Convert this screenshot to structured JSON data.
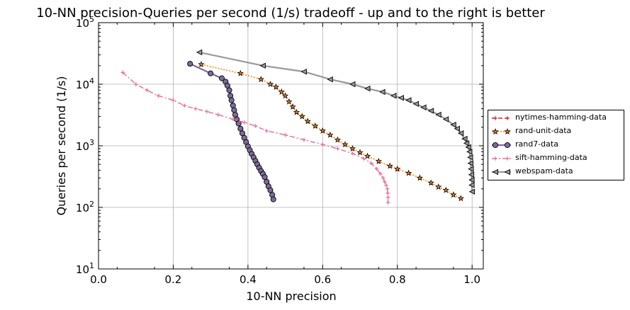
{
  "chart_data": {
    "type": "line",
    "title": "10-NN precision-Queries per second (1/s) tradeoff - up and to the right is better",
    "xlabel": "10-NN precision",
    "ylabel": "Queries per second (1/s)",
    "xlim": [
      0.0,
      1.03
    ],
    "ylim": [
      10,
      100000
    ],
    "yscale": "log",
    "grid": true,
    "legend_position": "right",
    "x_ticks": [
      "0.0",
      "0.2",
      "0.4",
      "0.6",
      "0.8",
      "1.0"
    ],
    "y_ticks": [
      {
        "base": "10",
        "exp": "1"
      },
      {
        "base": "10",
        "exp": "2"
      },
      {
        "base": "10",
        "exp": "3"
      },
      {
        "base": "10",
        "exp": "4"
      },
      {
        "base": "10",
        "exp": "5"
      }
    ],
    "series": [
      {
        "name": "nytimes-hamming-data",
        "color": "#d62728",
        "marker": "plus",
        "linestyle": "dashed",
        "points": []
      },
      {
        "name": "rand-unit-data",
        "color": "#ff7f0e",
        "marker": "star",
        "linestyle": "dotted",
        "points": [
          [
            0.275,
            21000
          ],
          [
            0.38,
            15000
          ],
          [
            0.435,
            12000
          ],
          [
            0.46,
            10000
          ],
          [
            0.475,
            9000
          ],
          [
            0.49,
            7500
          ],
          [
            0.5,
            6500
          ],
          [
            0.51,
            5200
          ],
          [
            0.52,
            4300
          ],
          [
            0.53,
            3500
          ],
          [
            0.545,
            3000
          ],
          [
            0.56,
            2500
          ],
          [
            0.58,
            2100
          ],
          [
            0.6,
            1750
          ],
          [
            0.62,
            1500
          ],
          [
            0.64,
            1250
          ],
          [
            0.66,
            1050
          ],
          [
            0.68,
            900
          ],
          [
            0.7,
            780
          ],
          [
            0.72,
            680
          ],
          [
            0.75,
            560
          ],
          [
            0.78,
            470
          ],
          [
            0.8,
            420
          ],
          [
            0.83,
            360
          ],
          [
            0.86,
            300
          ],
          [
            0.89,
            250
          ],
          [
            0.91,
            215
          ],
          [
            0.93,
            190
          ],
          [
            0.95,
            160
          ],
          [
            0.97,
            140
          ]
        ]
      },
      {
        "name": "rand7-data",
        "color": "#7b6b9a",
        "marker": "circle",
        "linestyle": "solid",
        "points": [
          [
            0.245,
            21500
          ],
          [
            0.3,
            15000
          ],
          [
            0.33,
            12500
          ],
          [
            0.34,
            11000
          ],
          [
            0.345,
            9500
          ],
          [
            0.35,
            8000
          ],
          [
            0.353,
            6500
          ],
          [
            0.356,
            5500
          ],
          [
            0.36,
            4500
          ],
          [
            0.363,
            3800
          ],
          [
            0.366,
            3200
          ],
          [
            0.37,
            2700
          ],
          [
            0.375,
            2300
          ],
          [
            0.38,
            1900
          ],
          [
            0.385,
            1600
          ],
          [
            0.39,
            1350
          ],
          [
            0.395,
            1150
          ],
          [
            0.4,
            980
          ],
          [
            0.405,
            850
          ],
          [
            0.41,
            740
          ],
          [
            0.415,
            650
          ],
          [
            0.42,
            570
          ],
          [
            0.425,
            500
          ],
          [
            0.43,
            440
          ],
          [
            0.435,
            390
          ],
          [
            0.44,
            350
          ],
          [
            0.445,
            310
          ],
          [
            0.45,
            260
          ],
          [
            0.455,
            220
          ],
          [
            0.46,
            190
          ],
          [
            0.465,
            160
          ],
          [
            0.468,
            135
          ]
        ]
      },
      {
        "name": "sift-hamming-data",
        "color": "#e8739c",
        "marker": "plus",
        "linestyle": "dashdot",
        "points": [
          [
            0.065,
            15500
          ],
          [
            0.1,
            10000
          ],
          [
            0.13,
            8000
          ],
          [
            0.16,
            6500
          ],
          [
            0.2,
            5500
          ],
          [
            0.23,
            4500
          ],
          [
            0.26,
            4000
          ],
          [
            0.29,
            3600
          ],
          [
            0.32,
            3200
          ],
          [
            0.36,
            2700
          ],
          [
            0.39,
            2400
          ],
          [
            0.42,
            2100
          ],
          [
            0.45,
            1750
          ],
          [
            0.5,
            1500
          ],
          [
            0.55,
            1250
          ],
          [
            0.6,
            1050
          ],
          [
            0.64,
            900
          ],
          [
            0.68,
            750
          ],
          [
            0.71,
            620
          ],
          [
            0.73,
            520
          ],
          [
            0.745,
            420
          ],
          [
            0.755,
            350
          ],
          [
            0.762,
            300
          ],
          [
            0.766,
            260
          ],
          [
            0.77,
            230
          ],
          [
            0.773,
            200
          ],
          [
            0.774,
            170
          ],
          [
            0.775,
            145
          ],
          [
            0.775,
            120
          ]
        ]
      },
      {
        "name": "webspam-data",
        "color": "#999999",
        "marker": "triangle-left",
        "linestyle": "solid",
        "points": [
          [
            0.27,
            33000
          ],
          [
            0.44,
            20000
          ],
          [
            0.55,
            16000
          ],
          [
            0.62,
            12000
          ],
          [
            0.68,
            10000
          ],
          [
            0.72,
            8500
          ],
          [
            0.76,
            7500
          ],
          [
            0.79,
            6500
          ],
          [
            0.81,
            6000
          ],
          [
            0.83,
            5500
          ],
          [
            0.85,
            4800
          ],
          [
            0.87,
            4200
          ],
          [
            0.89,
            3700
          ],
          [
            0.91,
            3200
          ],
          [
            0.93,
            2700
          ],
          [
            0.95,
            2200
          ],
          [
            0.96,
            1900
          ],
          [
            0.97,
            1600
          ],
          [
            0.98,
            1300
          ],
          [
            0.985,
            1100
          ],
          [
            0.99,
            950
          ],
          [
            0.993,
            800
          ],
          [
            0.995,
            650
          ],
          [
            0.996,
            520
          ],
          [
            0.997,
            420
          ],
          [
            0.998,
            340
          ],
          [
            0.999,
            280
          ],
          [
            0.999,
            230
          ],
          [
            1.0,
            180
          ]
        ]
      }
    ]
  }
}
